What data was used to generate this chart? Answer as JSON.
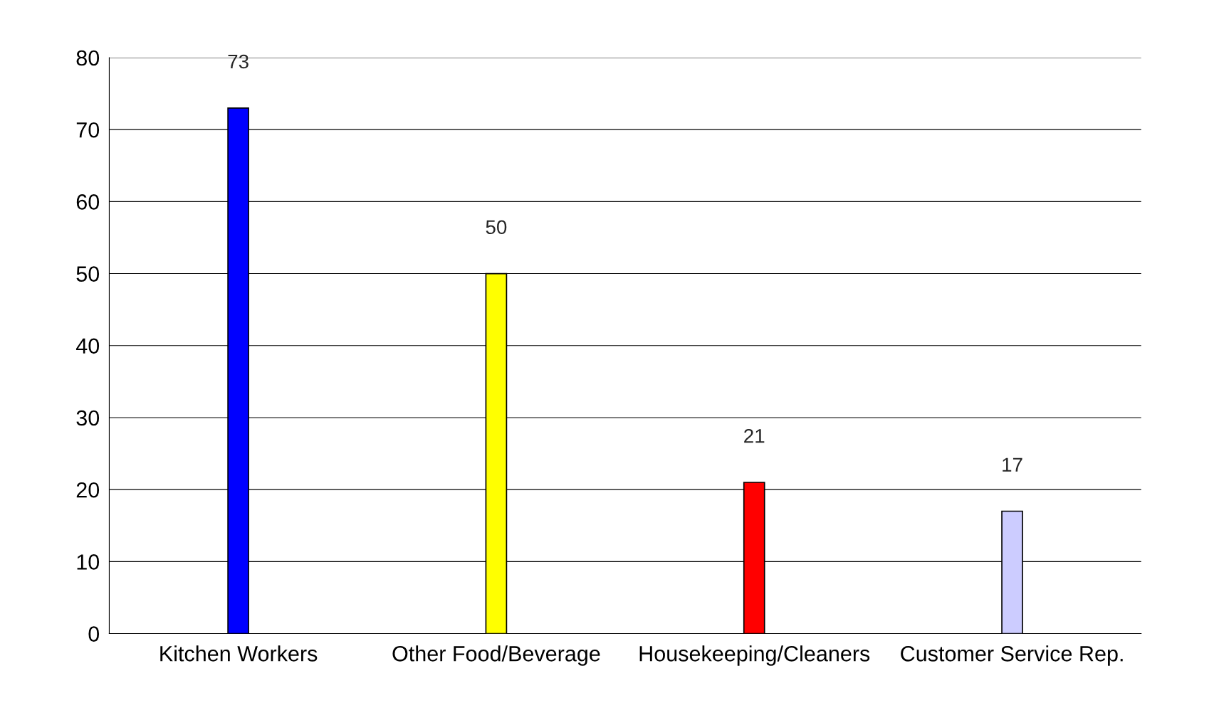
{
  "chart_data": {
    "type": "bar",
    "categories": [
      "Kitchen Workers",
      "Other Food/Beverage",
      "Housekeeping/Cleaners",
      "Customer Service Rep."
    ],
    "values": [
      73,
      50,
      21,
      17
    ],
    "colors": [
      "#0000ff",
      "#ffff00",
      "#ff0000",
      "#ccccff"
    ],
    "ylim": [
      0,
      80
    ],
    "yticks": [
      0,
      10,
      20,
      30,
      40,
      50,
      60,
      70,
      80
    ],
    "grid": "y",
    "data_labels": true
  }
}
